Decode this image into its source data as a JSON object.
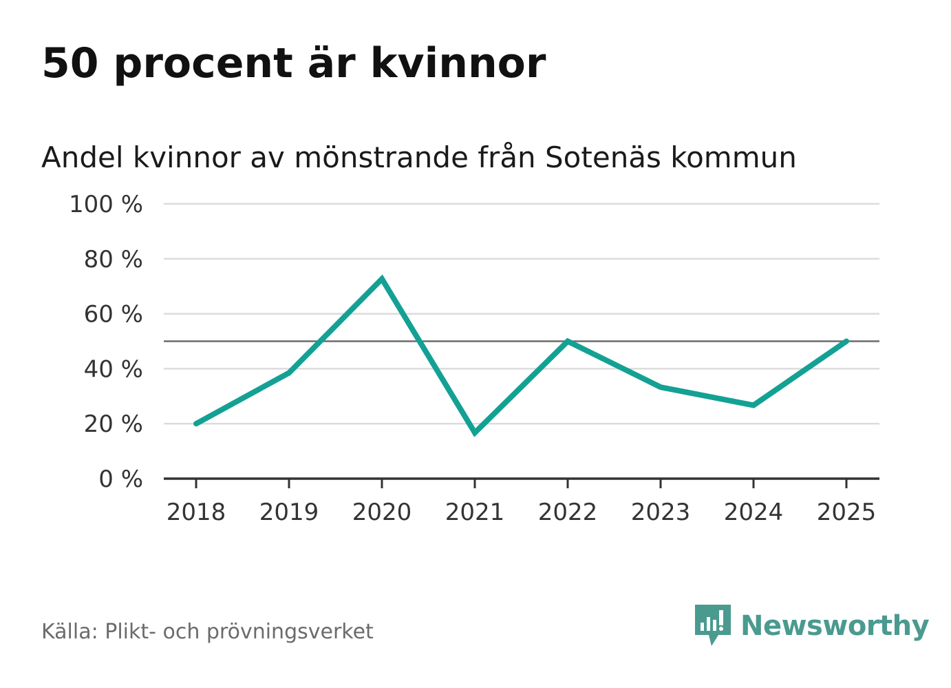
{
  "colors": {
    "line": "#13a194",
    "reference": "#6b6b6b",
    "grid": "#dcdcdc",
    "axis": "#333333",
    "brand": "#4a9a8f"
  },
  "chart_data": {
    "type": "line",
    "title": "50 procent är kvinnor",
    "subtitle": "Andel kvinnor av mönstrande från Sotenäs kommun",
    "xlabel": "",
    "ylabel": "",
    "x": [
      "2018",
      "2019",
      "2020",
      "2021",
      "2022",
      "2023",
      "2024",
      "2025"
    ],
    "series": [
      {
        "name": "Andel kvinnor",
        "values": [
          20,
          38.5,
          72.7,
          16.7,
          50,
          33.3,
          26.7,
          50
        ]
      }
    ],
    "reference_line": 50,
    "ylim": [
      0,
      100
    ],
    "yticks": [
      0,
      20,
      40,
      60,
      80,
      100
    ],
    "ytick_labels": [
      "0 %",
      "20 %",
      "40 %",
      "60 %",
      "80 %",
      "100 %"
    ],
    "grid": true
  },
  "footer": {
    "source": "Källa: Plikt- och prövningsverket",
    "brand": "Newsworthy",
    "brand_icon": "newsworthy-logo-icon"
  }
}
